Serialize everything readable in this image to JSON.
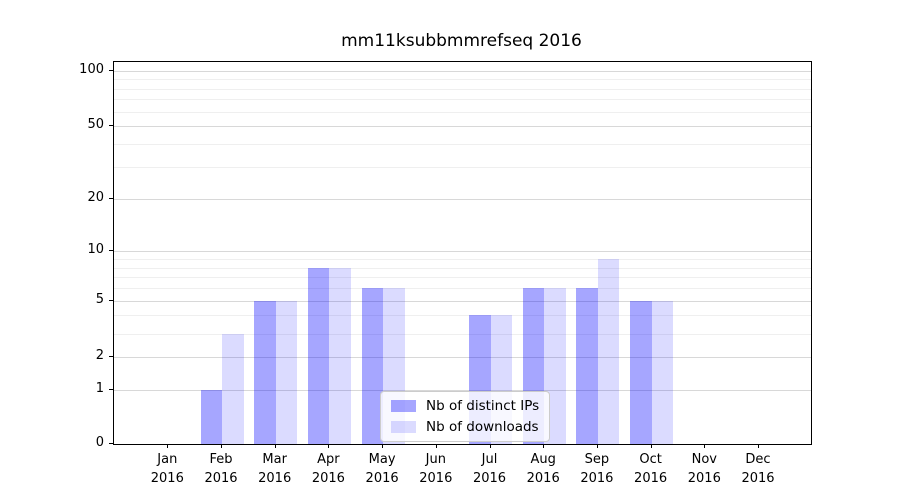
{
  "chart_data": {
    "type": "bar",
    "title": "mm11ksubbmmrefseq 2016",
    "categories": [
      "Jan",
      "Feb",
      "Mar",
      "Apr",
      "May",
      "Jun",
      "Jul",
      "Aug",
      "Sep",
      "Oct",
      "Nov",
      "Dec"
    ],
    "category_year": "2016",
    "series": [
      {
        "name": "Nb of distinct IPs",
        "color": "#0000ff",
        "alpha": 0.35,
        "solid_hex": "#a6a6f7",
        "values": [
          0,
          1,
          5,
          8,
          6,
          0,
          4,
          6,
          6,
          5,
          0,
          0
        ]
      },
      {
        "name": "Nb of downloads",
        "color": "#0000ff",
        "alpha": 0.14,
        "solid_hex": "#dcdcf8",
        "values": [
          0,
          3,
          5,
          8,
          6,
          0,
          4,
          6,
          9,
          5,
          0,
          0
        ]
      }
    ],
    "xlabel": "",
    "ylabel": "",
    "yaxis": {
      "scale": "log1p",
      "tick_labels": [
        "0",
        "1",
        "2",
        "5",
        "10",
        "20",
        "50",
        "100"
      ],
      "ticks": [
        0,
        1,
        2,
        5,
        10,
        20,
        50,
        100
      ],
      "minor_ticks": [
        3,
        4,
        6,
        7,
        8,
        9,
        30,
        40,
        60,
        70,
        80,
        90
      ],
      "ylim": [
        0,
        112
      ]
    },
    "grid": {
      "major_color": "#d8d8d8",
      "minor_color": "#efefef",
      "grid_on": true
    },
    "legend": {
      "position": "lower-center-inside",
      "labels": [
        "Nb of distinct IPs",
        "Nb of downloads"
      ]
    }
  }
}
